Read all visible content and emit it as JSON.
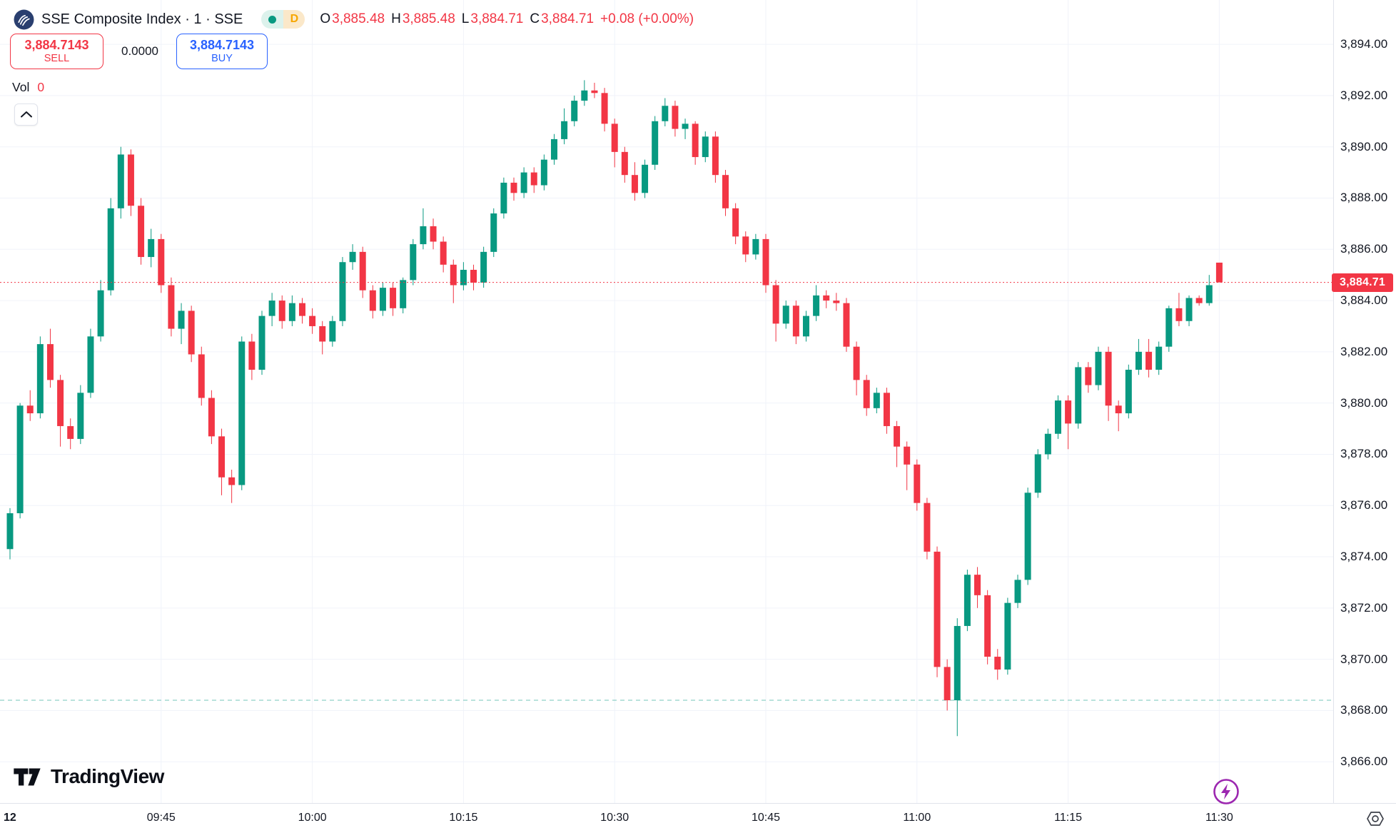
{
  "header": {
    "symbol_title": "SSE Composite Index · 1 · SSE",
    "interval_badge_label": "D",
    "ohlc": {
      "open_label": "O",
      "open": "3,885.48",
      "high_label": "H",
      "high": "3,885.48",
      "low_label": "L",
      "low": "3,884.71",
      "close_label": "C",
      "close": "3,884.71",
      "change": "+0.08 (+0.00%)"
    }
  },
  "trade_panel": {
    "sell_price": "3,884.7143",
    "sell_label": "SELL",
    "spread": "0.0000",
    "buy_price": "3,884.7143",
    "buy_label": "BUY"
  },
  "indicators": {
    "volume_label": "Vol",
    "volume_value": "0"
  },
  "footer": {
    "brand": "TradingView"
  },
  "axes": {
    "last_price_label": "3,884.71",
    "price_labels": [
      {
        "label": "3,894.00",
        "value": 3894
      },
      {
        "label": "3,892.00",
        "value": 3892
      },
      {
        "label": "3,890.00",
        "value": 3890
      },
      {
        "label": "3,888.00",
        "value": 3888
      },
      {
        "label": "3,886.00",
        "value": 3886
      },
      {
        "label": "3,884.00",
        "value": 3884
      },
      {
        "label": "3,882.00",
        "value": 3882
      },
      {
        "label": "3,880.00",
        "value": 3880
      },
      {
        "label": "3,878.00",
        "value": 3878
      },
      {
        "label": "3,876.00",
        "value": 3876
      },
      {
        "label": "3,874.00",
        "value": 3874
      },
      {
        "label": "3,872.00",
        "value": 3872
      },
      {
        "label": "3,870.00",
        "value": 3870
      },
      {
        "label": "3,868.00",
        "value": 3868
      },
      {
        "label": "3,866.00",
        "value": 3866
      }
    ],
    "time_labels": [
      {
        "label": "12",
        "index": 0,
        "emphasis": true
      },
      {
        "label": "09:45",
        "index": 15
      },
      {
        "label": "10:00",
        "index": 30
      },
      {
        "label": "10:15",
        "index": 45
      },
      {
        "label": "10:30",
        "index": 60
      },
      {
        "label": "10:45",
        "index": 75
      },
      {
        "label": "11:00",
        "index": 90
      },
      {
        "label": "11:15",
        "index": 105
      },
      {
        "label": "11:30",
        "index": 120
      }
    ]
  },
  "colors": {
    "up": "#089981",
    "down": "#F23645",
    "accent_red": "#F23645",
    "accent_blue": "#2962FF",
    "text": "#131722",
    "grid": "#F0F3FA",
    "axis_border": "#E0E3EB",
    "badge_bg": "#F23645",
    "interval_badge": "#F7A600",
    "logo_navy": "#2A3F6F",
    "flash_purple": "#9C27B0",
    "reference_teal": "#089981"
  },
  "chart_data": {
    "type": "candlestick",
    "symbol": "SSE Composite Index",
    "interval_minutes": 1,
    "exchange": "SSE",
    "y_range": [
      3864.39,
      3895.73
    ],
    "last_price": 3884.71,
    "reference_line_price": 3868.4,
    "columns": [
      "time",
      "open",
      "high",
      "low",
      "close"
    ],
    "candles": [
      [
        "09:30",
        3874.3,
        3875.9,
        3873.9,
        3875.7
      ],
      [
        "09:31",
        3875.7,
        3880.0,
        3875.5,
        3879.9
      ],
      [
        "09:32",
        3879.9,
        3880.5,
        3879.3,
        3879.6
      ],
      [
        "09:33",
        3879.6,
        3882.6,
        3879.4,
        3882.3
      ],
      [
        "09:34",
        3882.3,
        3882.9,
        3880.6,
        3880.9
      ],
      [
        "09:35",
        3880.9,
        3881.1,
        3878.3,
        3879.1
      ],
      [
        "09:36",
        3879.1,
        3879.4,
        3878.2,
        3878.6
      ],
      [
        "09:37",
        3878.6,
        3880.7,
        3878.4,
        3880.4
      ],
      [
        "09:38",
        3880.4,
        3882.9,
        3880.2,
        3882.6
      ],
      [
        "09:39",
        3882.6,
        3884.8,
        3882.4,
        3884.4
      ],
      [
        "09:40",
        3884.4,
        3888.0,
        3884.2,
        3887.6
      ],
      [
        "09:41",
        3887.6,
        3890.0,
        3887.2,
        3889.7
      ],
      [
        "09:42",
        3889.7,
        3889.9,
        3887.3,
        3887.7
      ],
      [
        "09:43",
        3887.7,
        3888.0,
        3885.4,
        3885.7
      ],
      [
        "09:44",
        3885.7,
        3886.8,
        3885.3,
        3886.4
      ],
      [
        "09:45",
        3886.4,
        3886.6,
        3884.3,
        3884.6
      ],
      [
        "09:46",
        3884.6,
        3884.9,
        3882.6,
        3882.9
      ],
      [
        "09:47",
        3882.9,
        3883.9,
        3882.3,
        3883.6
      ],
      [
        "09:48",
        3883.6,
        3883.8,
        3881.6,
        3881.9
      ],
      [
        "09:49",
        3881.9,
        3882.2,
        3879.9,
        3880.2
      ],
      [
        "09:50",
        3880.2,
        3880.5,
        3878.4,
        3878.7
      ],
      [
        "09:51",
        3878.7,
        3879.0,
        3876.4,
        3877.1
      ],
      [
        "09:52",
        3877.1,
        3877.4,
        3876.1,
        3876.8
      ],
      [
        "09:53",
        3876.8,
        3882.6,
        3876.6,
        3882.4
      ],
      [
        "09:54",
        3882.4,
        3882.7,
        3880.9,
        3881.3
      ],
      [
        "09:55",
        3881.3,
        3883.6,
        3881.1,
        3883.4
      ],
      [
        "09:56",
        3883.4,
        3884.3,
        3883.0,
        3884.0
      ],
      [
        "09:57",
        3884.0,
        3884.2,
        3882.9,
        3883.2
      ],
      [
        "09:58",
        3883.2,
        3884.2,
        3883.0,
        3883.9
      ],
      [
        "09:59",
        3883.9,
        3884.1,
        3883.1,
        3883.4
      ],
      [
        "10:00",
        3883.4,
        3883.7,
        3882.7,
        3883.0
      ],
      [
        "10:01",
        3883.0,
        3883.2,
        3881.9,
        3882.4
      ],
      [
        "10:02",
        3882.4,
        3883.4,
        3882.2,
        3883.2
      ],
      [
        "10:03",
        3883.2,
        3885.7,
        3883.0,
        3885.5
      ],
      [
        "10:04",
        3885.5,
        3886.2,
        3885.2,
        3885.9
      ],
      [
        "10:05",
        3885.9,
        3886.1,
        3884.1,
        3884.4
      ],
      [
        "10:06",
        3884.4,
        3884.6,
        3883.3,
        3883.6
      ],
      [
        "10:07",
        3883.6,
        3884.7,
        3883.4,
        3884.5
      ],
      [
        "10:08",
        3884.5,
        3884.7,
        3883.4,
        3883.7
      ],
      [
        "10:09",
        3883.7,
        3884.9,
        3883.5,
        3884.8
      ],
      [
        "10:10",
        3884.8,
        3886.4,
        3884.6,
        3886.2
      ],
      [
        "10:11",
        3886.2,
        3887.6,
        3886.0,
        3886.9
      ],
      [
        "10:12",
        3886.9,
        3887.2,
        3886.0,
        3886.3
      ],
      [
        "10:13",
        3886.3,
        3886.5,
        3885.1,
        3885.4
      ],
      [
        "10:14",
        3885.4,
        3885.6,
        3883.9,
        3884.6
      ],
      [
        "10:15",
        3884.6,
        3885.5,
        3884.4,
        3885.2
      ],
      [
        "10:16",
        3885.2,
        3885.4,
        3884.4,
        3884.7
      ],
      [
        "10:17",
        3884.7,
        3886.1,
        3884.5,
        3885.9
      ],
      [
        "10:18",
        3885.9,
        3887.6,
        3885.7,
        3887.4
      ],
      [
        "10:19",
        3887.4,
        3888.8,
        3887.2,
        3888.6
      ],
      [
        "10:20",
        3888.6,
        3888.8,
        3887.9,
        3888.2
      ],
      [
        "10:21",
        3888.2,
        3889.2,
        3888.0,
        3889.0
      ],
      [
        "10:22",
        3889.0,
        3889.2,
        3888.2,
        3888.5
      ],
      [
        "10:23",
        3888.5,
        3889.7,
        3888.3,
        3889.5
      ],
      [
        "10:24",
        3889.5,
        3890.5,
        3889.3,
        3890.3
      ],
      [
        "10:25",
        3890.3,
        3891.5,
        3890.1,
        3891.0
      ],
      [
        "10:26",
        3891.0,
        3892.0,
        3890.8,
        3891.8
      ],
      [
        "10:27",
        3891.8,
        3892.6,
        3891.6,
        3892.2
      ],
      [
        "10:28",
        3892.2,
        3892.5,
        3891.9,
        3892.1
      ],
      [
        "10:29",
        3892.1,
        3892.3,
        3890.6,
        3890.9
      ],
      [
        "10:30",
        3890.9,
        3891.1,
        3889.2,
        3889.8
      ],
      [
        "10:31",
        3889.8,
        3890.0,
        3888.6,
        3888.9
      ],
      [
        "10:32",
        3888.9,
        3889.4,
        3887.9,
        3888.2
      ],
      [
        "10:33",
        3888.2,
        3889.5,
        3888.0,
        3889.3
      ],
      [
        "10:34",
        3889.3,
        3891.2,
        3889.1,
        3891.0
      ],
      [
        "10:35",
        3891.0,
        3891.9,
        3890.8,
        3891.6
      ],
      [
        "10:36",
        3891.6,
        3891.8,
        3890.4,
        3890.7
      ],
      [
        "10:37",
        3890.7,
        3891.1,
        3890.3,
        3890.9
      ],
      [
        "10:38",
        3890.9,
        3891.0,
        3889.3,
        3889.6
      ],
      [
        "10:39",
        3889.6,
        3890.6,
        3889.4,
        3890.4
      ],
      [
        "10:40",
        3890.4,
        3890.6,
        3888.6,
        3888.9
      ],
      [
        "10:41",
        3888.9,
        3889.1,
        3887.3,
        3887.6
      ],
      [
        "10:42",
        3887.6,
        3887.8,
        3886.2,
        3886.5
      ],
      [
        "10:43",
        3886.5,
        3886.7,
        3885.5,
        3885.8
      ],
      [
        "10:44",
        3885.8,
        3886.6,
        3885.6,
        3886.4
      ],
      [
        "10:45",
        3886.4,
        3886.6,
        3884.3,
        3884.6
      ],
      [
        "10:46",
        3884.6,
        3884.8,
        3882.4,
        3883.1
      ],
      [
        "10:47",
        3883.1,
        3884.0,
        3882.9,
        3883.8
      ],
      [
        "10:48",
        3883.8,
        3884.0,
        3882.3,
        3882.6
      ],
      [
        "10:49",
        3882.6,
        3883.6,
        3882.4,
        3883.4
      ],
      [
        "10:50",
        3883.4,
        3884.6,
        3883.2,
        3884.2
      ],
      [
        "10:51",
        3884.2,
        3884.4,
        3883.7,
        3884.0
      ],
      [
        "10:52",
        3884.0,
        3884.3,
        3883.6,
        3883.9
      ],
      [
        "10:53",
        3883.9,
        3884.1,
        3882.0,
        3882.2
      ],
      [
        "10:54",
        3882.2,
        3882.4,
        3880.3,
        3880.9
      ],
      [
        "10:55",
        3880.9,
        3881.1,
        3879.5,
        3879.8
      ],
      [
        "10:56",
        3879.8,
        3880.6,
        3879.6,
        3880.4
      ],
      [
        "10:57",
        3880.4,
        3880.6,
        3878.8,
        3879.1
      ],
      [
        "10:58",
        3879.1,
        3879.3,
        3877.5,
        3878.3
      ],
      [
        "10:59",
        3878.3,
        3878.5,
        3876.6,
        3877.6
      ],
      [
        "11:00",
        3877.6,
        3877.8,
        3875.8,
        3876.1
      ],
      [
        "11:01",
        3876.1,
        3876.3,
        3873.9,
        3874.2
      ],
      [
        "11:02",
        3874.2,
        3874.4,
        3869.3,
        3869.7
      ],
      [
        "11:03",
        3869.7,
        3870.0,
        3868.0,
        3868.4
      ],
      [
        "11:04",
        3868.4,
        3871.6,
        3867.0,
        3871.3
      ],
      [
        "11:05",
        3871.3,
        3873.5,
        3871.1,
        3873.3
      ],
      [
        "11:06",
        3873.3,
        3873.6,
        3872.0,
        3872.5
      ],
      [
        "11:07",
        3872.5,
        3872.7,
        3869.8,
        3870.1
      ],
      [
        "11:08",
        3870.1,
        3870.4,
        3869.2,
        3869.6
      ],
      [
        "11:09",
        3869.6,
        3872.4,
        3869.4,
        3872.2
      ],
      [
        "11:10",
        3872.2,
        3873.3,
        3872.0,
        3873.1
      ],
      [
        "11:11",
        3873.1,
        3876.7,
        3872.9,
        3876.5
      ],
      [
        "11:12",
        3876.5,
        3878.2,
        3876.3,
        3878.0
      ],
      [
        "11:13",
        3878.0,
        3879.0,
        3877.8,
        3878.8
      ],
      [
        "11:14",
        3878.8,
        3880.3,
        3878.6,
        3880.1
      ],
      [
        "11:15",
        3880.1,
        3880.3,
        3878.2,
        3879.2
      ],
      [
        "11:16",
        3879.2,
        3881.6,
        3879.0,
        3881.4
      ],
      [
        "11:17",
        3881.4,
        3881.6,
        3880.4,
        3880.7
      ],
      [
        "11:18",
        3880.7,
        3882.2,
        3880.5,
        3882.0
      ],
      [
        "11:19",
        3882.0,
        3882.2,
        3879.3,
        3879.9
      ],
      [
        "11:20",
        3879.9,
        3880.1,
        3878.9,
        3879.6
      ],
      [
        "11:21",
        3879.6,
        3881.5,
        3879.4,
        3881.3
      ],
      [
        "11:22",
        3881.3,
        3882.5,
        3881.1,
        3882.0
      ],
      [
        "11:23",
        3882.0,
        3882.5,
        3881.0,
        3881.3
      ],
      [
        "11:24",
        3881.3,
        3882.4,
        3881.1,
        3882.2
      ],
      [
        "11:25",
        3882.2,
        3883.8,
        3882.0,
        3883.7
      ],
      [
        "11:26",
        3883.7,
        3884.3,
        3883.0,
        3883.2
      ],
      [
        "11:27",
        3883.2,
        3884.2,
        3883.0,
        3884.1
      ],
      [
        "11:28",
        3884.1,
        3884.2,
        3883.8,
        3883.9
      ],
      [
        "11:29",
        3883.9,
        3885.0,
        3883.8,
        3884.6
      ],
      [
        "11:30",
        3885.48,
        3885.48,
        3884.71,
        3884.71
      ]
    ]
  }
}
